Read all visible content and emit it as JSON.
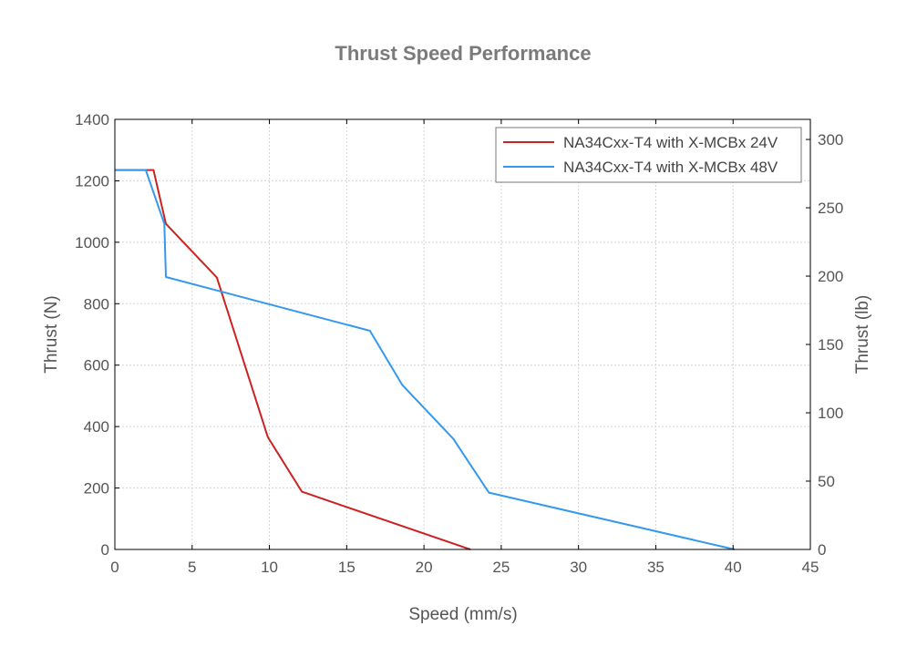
{
  "chart_data": {
    "type": "line",
    "title": "Thrust Speed Performance",
    "xlabel": "Speed (mm/s)",
    "ylabel": "Thrust (N)",
    "y2label": "Thrust (lb)",
    "xlim": [
      0,
      45
    ],
    "ylim": [
      0,
      1400
    ],
    "y2lim": [
      0,
      314.7
    ],
    "xticks": [
      0,
      5,
      10,
      15,
      20,
      25,
      30,
      35,
      40,
      45
    ],
    "yticks": [
      0,
      200,
      400,
      600,
      800,
      1000,
      1200,
      1400
    ],
    "y2ticks": [
      0,
      50,
      100,
      150,
      200,
      250,
      300
    ],
    "grid": true,
    "legend_position": "top-right",
    "series": [
      {
        "name": "NA34Cxx-T4 with X-MCBx 24V",
        "color": "#cc2222",
        "x": [
          0,
          2.5,
          3.3,
          6.6,
          9.9,
          12.1,
          23.0
        ],
        "y": [
          1235,
          1235,
          1060,
          885,
          365,
          188,
          0
        ]
      },
      {
        "name": "NA34Cxx-T4 with X-MCBx 48V",
        "color": "#3399ee",
        "x": [
          0,
          2.0,
          3.2,
          3.3,
          16.5,
          18.6,
          21.9,
          24.2,
          40.1
        ],
        "y": [
          1235,
          1235,
          1060,
          887,
          712,
          535,
          360,
          185,
          0
        ]
      }
    ]
  }
}
